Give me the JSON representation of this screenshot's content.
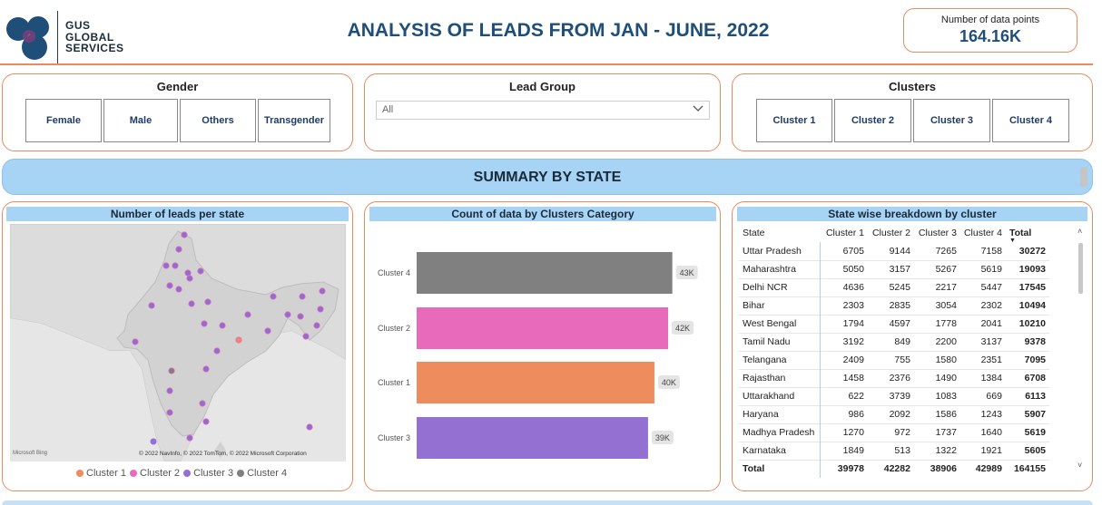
{
  "header": {
    "logo_text_lines": [
      "GUS",
      "GLOBAL",
      "SERVICES"
    ],
    "title": "ANALYSIS OF LEADS FROM JAN - JUNE, 2022",
    "kpi_label": "Number of data points",
    "kpi_value": "164.16K"
  },
  "slicers": {
    "gender": {
      "title": "Gender",
      "options": [
        "Female",
        "Male",
        "Others",
        "Transgender"
      ]
    },
    "lead_group": {
      "title": "Lead Group",
      "selected": "All"
    },
    "clusters": {
      "title": "Clusters",
      "options": [
        "Cluster 1",
        "Cluster 2",
        "Cluster 3",
        "Cluster 4"
      ]
    }
  },
  "banner": {
    "title": "SUMMARY BY STATE"
  },
  "map_panel": {
    "title": "Number of leads per state",
    "attribution": "© 2022 NavInfo, © 2022 TomTom, © 2022 Microsoft Corporation",
    "bing_label": "Microsoft Bing",
    "legend": [
      {
        "label": "Cluster 1",
        "color": "#ee8c5e"
      },
      {
        "label": "Cluster 2",
        "color": "#e86bbb"
      },
      {
        "label": "Cluster 3",
        "color": "#9370d2"
      },
      {
        "label": "Cluster 4",
        "color": "#7f7f7f"
      }
    ]
  },
  "bar_panel": {
    "title": "Count of data by Clusters Category"
  },
  "chart_data": {
    "type": "bar",
    "orientation": "horizontal",
    "title": "Count of data by Clusters Category",
    "categories": [
      "Cluster 4",
      "Cluster 2",
      "Cluster 1",
      "Cluster 3"
    ],
    "values": [
      42989,
      42282,
      39978,
      38906
    ],
    "data_labels": [
      "43K",
      "42K",
      "40K",
      "39K"
    ],
    "colors": [
      "#808080",
      "#e86bbb",
      "#ee8c5e",
      "#9370d2"
    ],
    "xlim": [
      0,
      43500
    ]
  },
  "table_panel": {
    "title": "State wise breakdown by cluster",
    "columns": [
      "State",
      "Cluster 1",
      "Cluster 2",
      "Cluster 3",
      "Cluster 4",
      "Total"
    ],
    "rows": [
      [
        "Uttar Pradesh",
        "6705",
        "9144",
        "7265",
        "7158",
        "30272"
      ],
      [
        "Maharashtra",
        "5050",
        "3157",
        "5267",
        "5619",
        "19093"
      ],
      [
        "Delhi NCR",
        "4636",
        "5245",
        "2217",
        "5447",
        "17545"
      ],
      [
        "Bihar",
        "2303",
        "2835",
        "3054",
        "2302",
        "10494"
      ],
      [
        "West Bengal",
        "1794",
        "4597",
        "1778",
        "2041",
        "10210"
      ],
      [
        "Tamil Nadu",
        "3192",
        "849",
        "2200",
        "3137",
        "9378"
      ],
      [
        "Telangana",
        "2409",
        "755",
        "1580",
        "2351",
        "7095"
      ],
      [
        "Rajasthan",
        "1458",
        "2376",
        "1490",
        "1384",
        "6708"
      ],
      [
        "Uttarakhand",
        "622",
        "3739",
        "1083",
        "669",
        "6113"
      ],
      [
        "Haryana",
        "986",
        "2092",
        "1586",
        "1243",
        "5907"
      ],
      [
        "Madhya Pradesh",
        "1270",
        "972",
        "1737",
        "1640",
        "5619"
      ],
      [
        "Karnataka",
        "1849",
        "513",
        "1322",
        "1921",
        "5605"
      ]
    ],
    "total_row": [
      "Total",
      "39978",
      "42282",
      "38906",
      "42989",
      "164155"
    ]
  }
}
